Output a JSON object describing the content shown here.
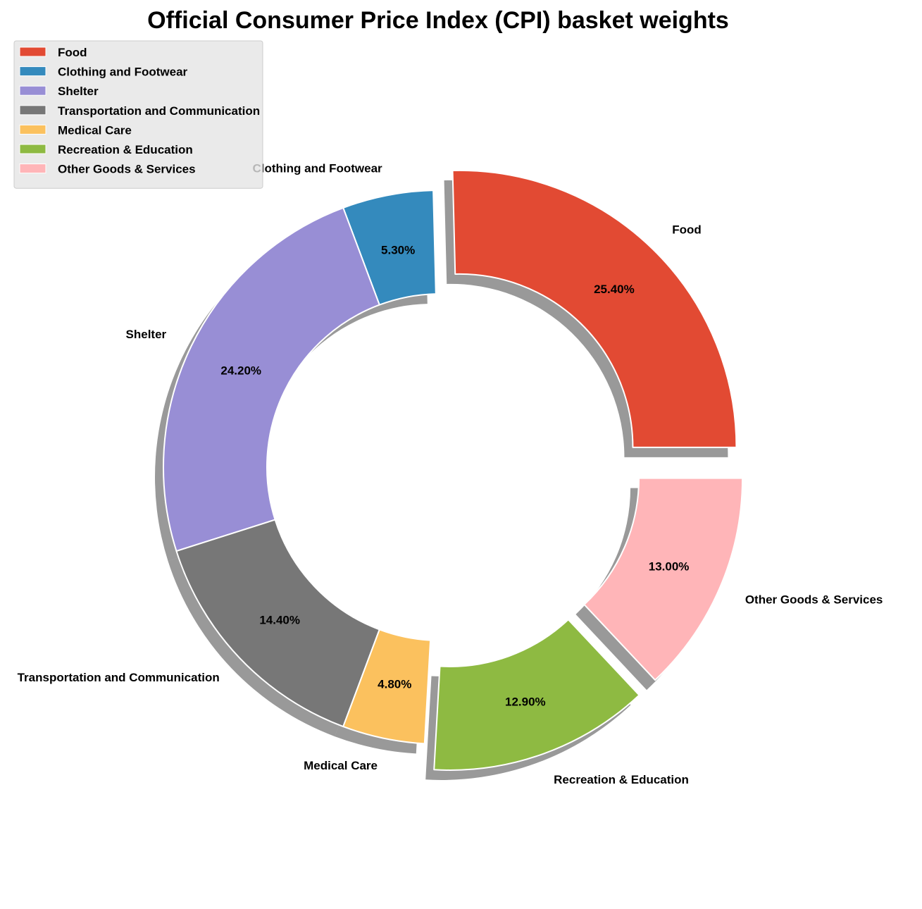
{
  "chart_data": {
    "type": "pie",
    "style": "donut",
    "title": "Official Consumer Price Index (CPI) basket weights",
    "categories": [
      "Food",
      "Clothing and Footwear",
      "Shelter",
      "Transportation and Communication",
      "Medical Care",
      "Recreation & Education",
      "Other Goods & Services"
    ],
    "values": [
      25.4,
      5.3,
      24.2,
      14.4,
      4.8,
      12.9,
      13.0
    ],
    "percent_labels": [
      "25.40%",
      "5.30%",
      "24.20%",
      "14.40%",
      "4.80%",
      "12.90%",
      "13.00%"
    ],
    "colors": [
      "#E24A33",
      "#348ABD",
      "#988ED5",
      "#777777",
      "#FBC15E",
      "#8EBA42",
      "#FFB5B8"
    ],
    "exploded": [
      "Food",
      "Recreation & Education",
      "Other Goods & Services"
    ],
    "shadow": true,
    "legend": {
      "position": "top-left",
      "entries": [
        "Food",
        "Clothing and Footwear",
        "Shelter",
        "Transportation and Communication",
        "Medical Care",
        "Recreation & Education",
        "Other Goods & Services"
      ]
    }
  }
}
